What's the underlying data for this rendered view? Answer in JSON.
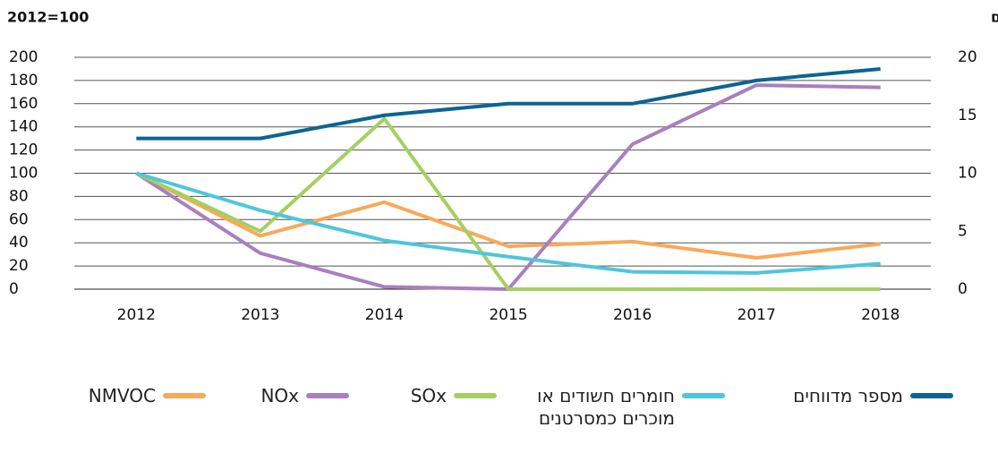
{
  "chart_data": {
    "type": "line",
    "y_label": "2012=100",
    "y2_label": "מספר מדווחים",
    "categories": [
      "2012",
      "2013",
      "2014",
      "2015",
      "2016",
      "2017",
      "2018"
    ],
    "series": [
      {
        "name": "מספר מדווחים",
        "color": "#0b6494",
        "axis": "y2",
        "values": [
          13,
          13,
          15,
          16,
          16,
          18,
          19
        ]
      },
      {
        "name": "חומרים חשודים או מוכרים כמסרטנים",
        "color": "#4ec6dc",
        "values": [
          100,
          68,
          42,
          28,
          15,
          14,
          22
        ]
      },
      {
        "name": "SOx",
        "color": "#a6cf62",
        "values": [
          100,
          50,
          147,
          0,
          0,
          0,
          0
        ]
      },
      {
        "name": "NOx",
        "color": "#a97fbf",
        "values": [
          100,
          31,
          2,
          0,
          125,
          176,
          174
        ]
      },
      {
        "name": "NMVOC",
        "color": "#f9a85a",
        "values": [
          100,
          46,
          75,
          37,
          41,
          27,
          39
        ]
      }
    ],
    "ylim": [
      0,
      200
    ],
    "yticks": [
      0,
      20,
      40,
      60,
      80,
      100,
      120,
      140,
      160,
      180,
      200
    ],
    "y2lim": [
      0,
      20
    ],
    "y2ticks": [
      0,
      5,
      10,
      15,
      20
    ],
    "grid": true
  }
}
